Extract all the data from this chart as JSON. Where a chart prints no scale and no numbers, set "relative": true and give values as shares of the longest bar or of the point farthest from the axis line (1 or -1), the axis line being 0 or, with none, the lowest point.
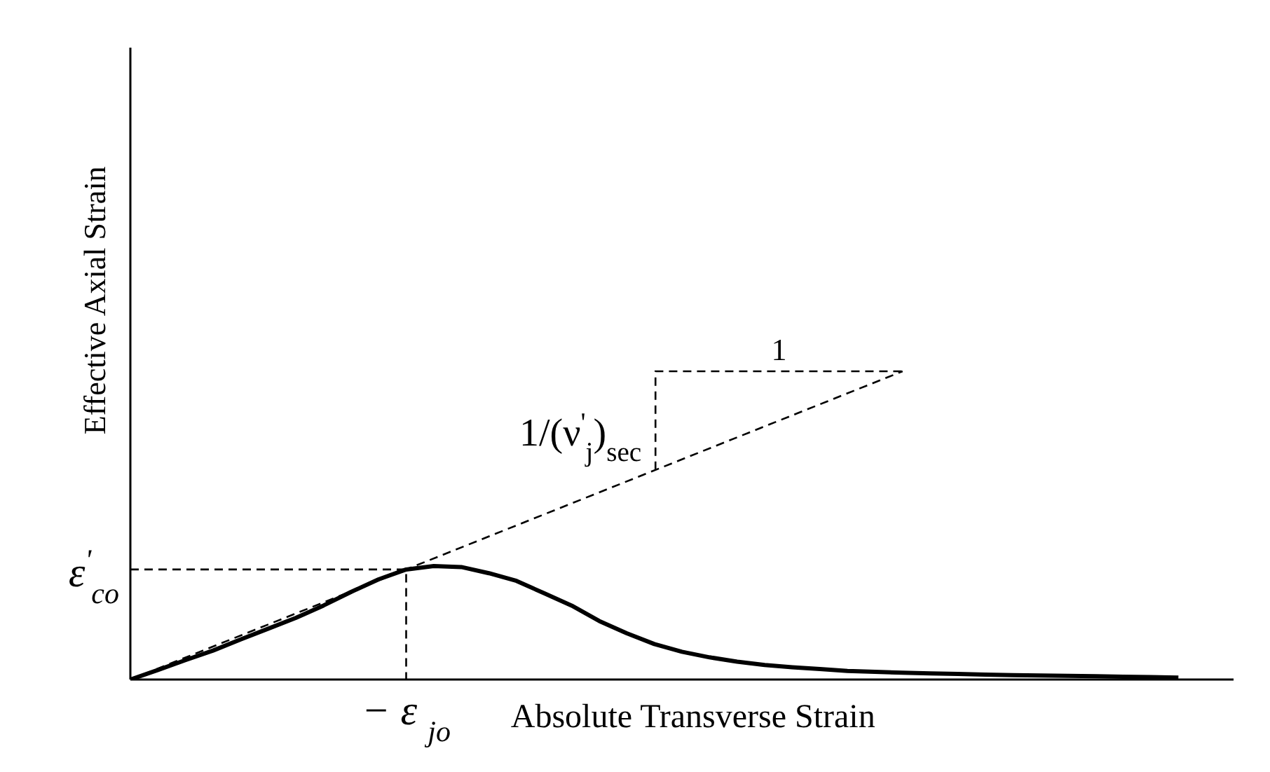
{
  "chart_data": {
    "type": "line",
    "relative": true,
    "xlabel": "Absolute Transverse Strain",
    "ylabel": "Effective Axial Strain",
    "marker": "none",
    "categories": [
      null,
      null,
      null,
      null,
      null,
      null,
      null,
      null,
      null,
      null,
      null,
      null,
      null,
      null,
      null,
      null,
      null,
      null,
      null,
      null,
      null,
      null,
      null,
      null,
      null,
      null,
      null,
      null,
      null,
      null,
      null,
      null,
      null,
      null,
      null,
      null,
      null,
      null,
      null,
      null,
      null
    ],
    "series": [
      {
        "color": "#000000",
        "line_style": "solid",
        "values": [
          0,
          0.031,
          0.063,
          0.094,
          0.13,
          0.165,
          0.2,
          0.24,
          0.284,
          0.325,
          0.357,
          0.368,
          0.365,
          0.345,
          0.32,
          0.28,
          0.24,
          0.19,
          0.15,
          0.115,
          0.09,
          0.072,
          0.058,
          0.047,
          0.04,
          0.034,
          0.028,
          0.025,
          0.022,
          0.02,
          0.018,
          0.016,
          0.014,
          0.013,
          0.012,
          0.011,
          0.009,
          0.008,
          0.006,
          null,
          null
        ]
      },
      {
        "color": "#000000",
        "line_style": "dashed",
        "values": [
          0,
          null,
          null,
          null,
          null,
          null,
          null,
          null,
          null,
          null,
          null,
          null,
          null,
          null,
          null,
          null,
          null,
          null,
          null,
          null,
          null,
          null,
          null,
          null,
          null,
          null,
          null,
          null,
          1,
          null,
          null,
          null,
          null,
          null,
          null,
          null,
          null,
          null,
          null,
          null,
          null
        ]
      }
    ],
    "annotations": [
      "− ε $_{jo}$",
      "ε$^{'}$$_{co}$",
      "1",
      "1/(ν$^{'}$$_{j}$)$_{sec}$"
    ]
  }
}
